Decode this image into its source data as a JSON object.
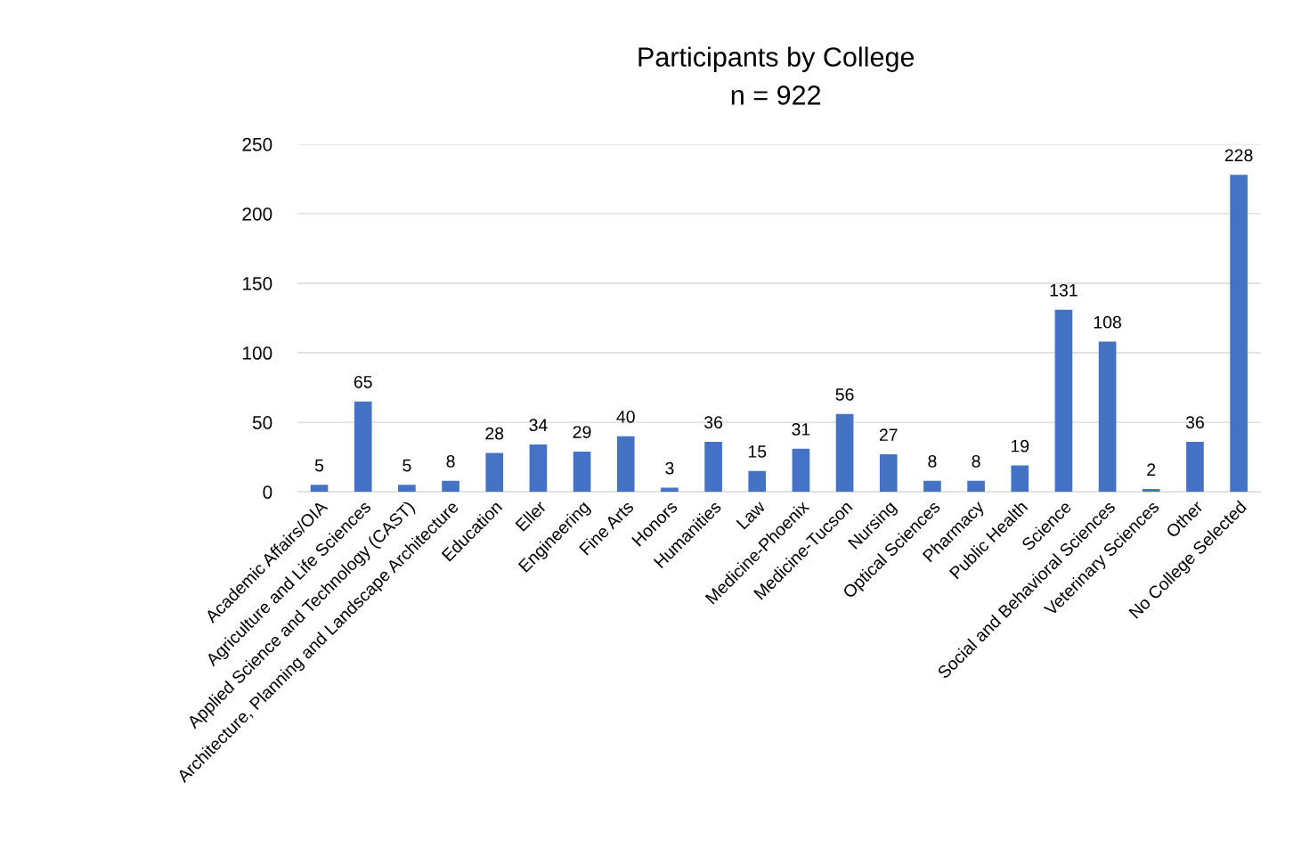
{
  "chart_data": {
    "type": "bar",
    "title": "Participants by College",
    "subtitle": "n = 922",
    "categories": [
      "Academic Affairs/OIA",
      "Agriculture and Life Sciences",
      "Applied Science and Technology (CAST)",
      "Architecture, Planning and Landscape Architecture",
      "Education",
      "Eller",
      "Engineering",
      "Fine Arts",
      "Honors",
      "Humanities",
      "Law",
      "Medicine-Phoenix",
      "Medicine-Tucson",
      "Nursing",
      "Optical Sciences",
      "Pharmacy",
      "Public Health",
      "Science",
      "Social and Behavioral Sciences",
      "Veterinary Sciences",
      "Other",
      "No College Selected"
    ],
    "values": [
      5,
      65,
      5,
      8,
      28,
      34,
      29,
      40,
      3,
      36,
      15,
      31,
      56,
      27,
      8,
      8,
      19,
      131,
      108,
      2,
      36,
      228
    ],
    "color": "#4472c4",
    "ylim": [
      0,
      250
    ],
    "yticks": [
      0,
      50,
      100,
      150,
      200,
      250
    ],
    "grid": "y",
    "data_labels": true,
    "legend": false
  }
}
